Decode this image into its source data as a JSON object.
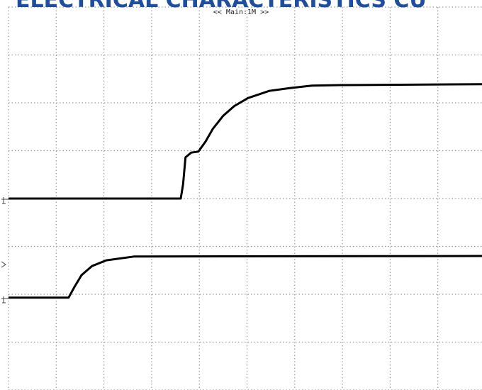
{
  "chart_data": {
    "type": "line",
    "title": "ELECTRICAL CHARACTERISTICS CU",
    "subtitle": "<< Main:1M >>",
    "xlim": [
      0,
      10
    ],
    "ylim": [
      0,
      8
    ],
    "xticks": [
      0,
      1,
      2,
      3,
      4,
      5,
      6,
      7,
      8,
      9,
      10
    ],
    "yticks": [
      0,
      1,
      2,
      3,
      4,
      5,
      6,
      7,
      8
    ],
    "grid": true,
    "series": [
      {
        "color": "#000000",
        "x": [
          0,
          3.61,
          3.66,
          3.71,
          3.83,
          3.98,
          4.13,
          4.28,
          4.5,
          4.73,
          5.02,
          5.47,
          5.91,
          6.36,
          6.95,
          10
        ],
        "values": [
          4.0,
          4.0,
          4.3,
          4.86,
          4.96,
          4.98,
          5.19,
          5.45,
          5.73,
          5.93,
          6.1,
          6.25,
          6.31,
          6.36,
          6.37,
          6.39
        ]
      },
      {
        "color": "#000000",
        "x": [
          0,
          1.26,
          1.38,
          1.53,
          1.75,
          2.05,
          2.64,
          10
        ],
        "values": [
          1.93,
          1.93,
          2.15,
          2.4,
          2.59,
          2.71,
          2.79,
          2.8
        ]
      }
    ]
  }
}
